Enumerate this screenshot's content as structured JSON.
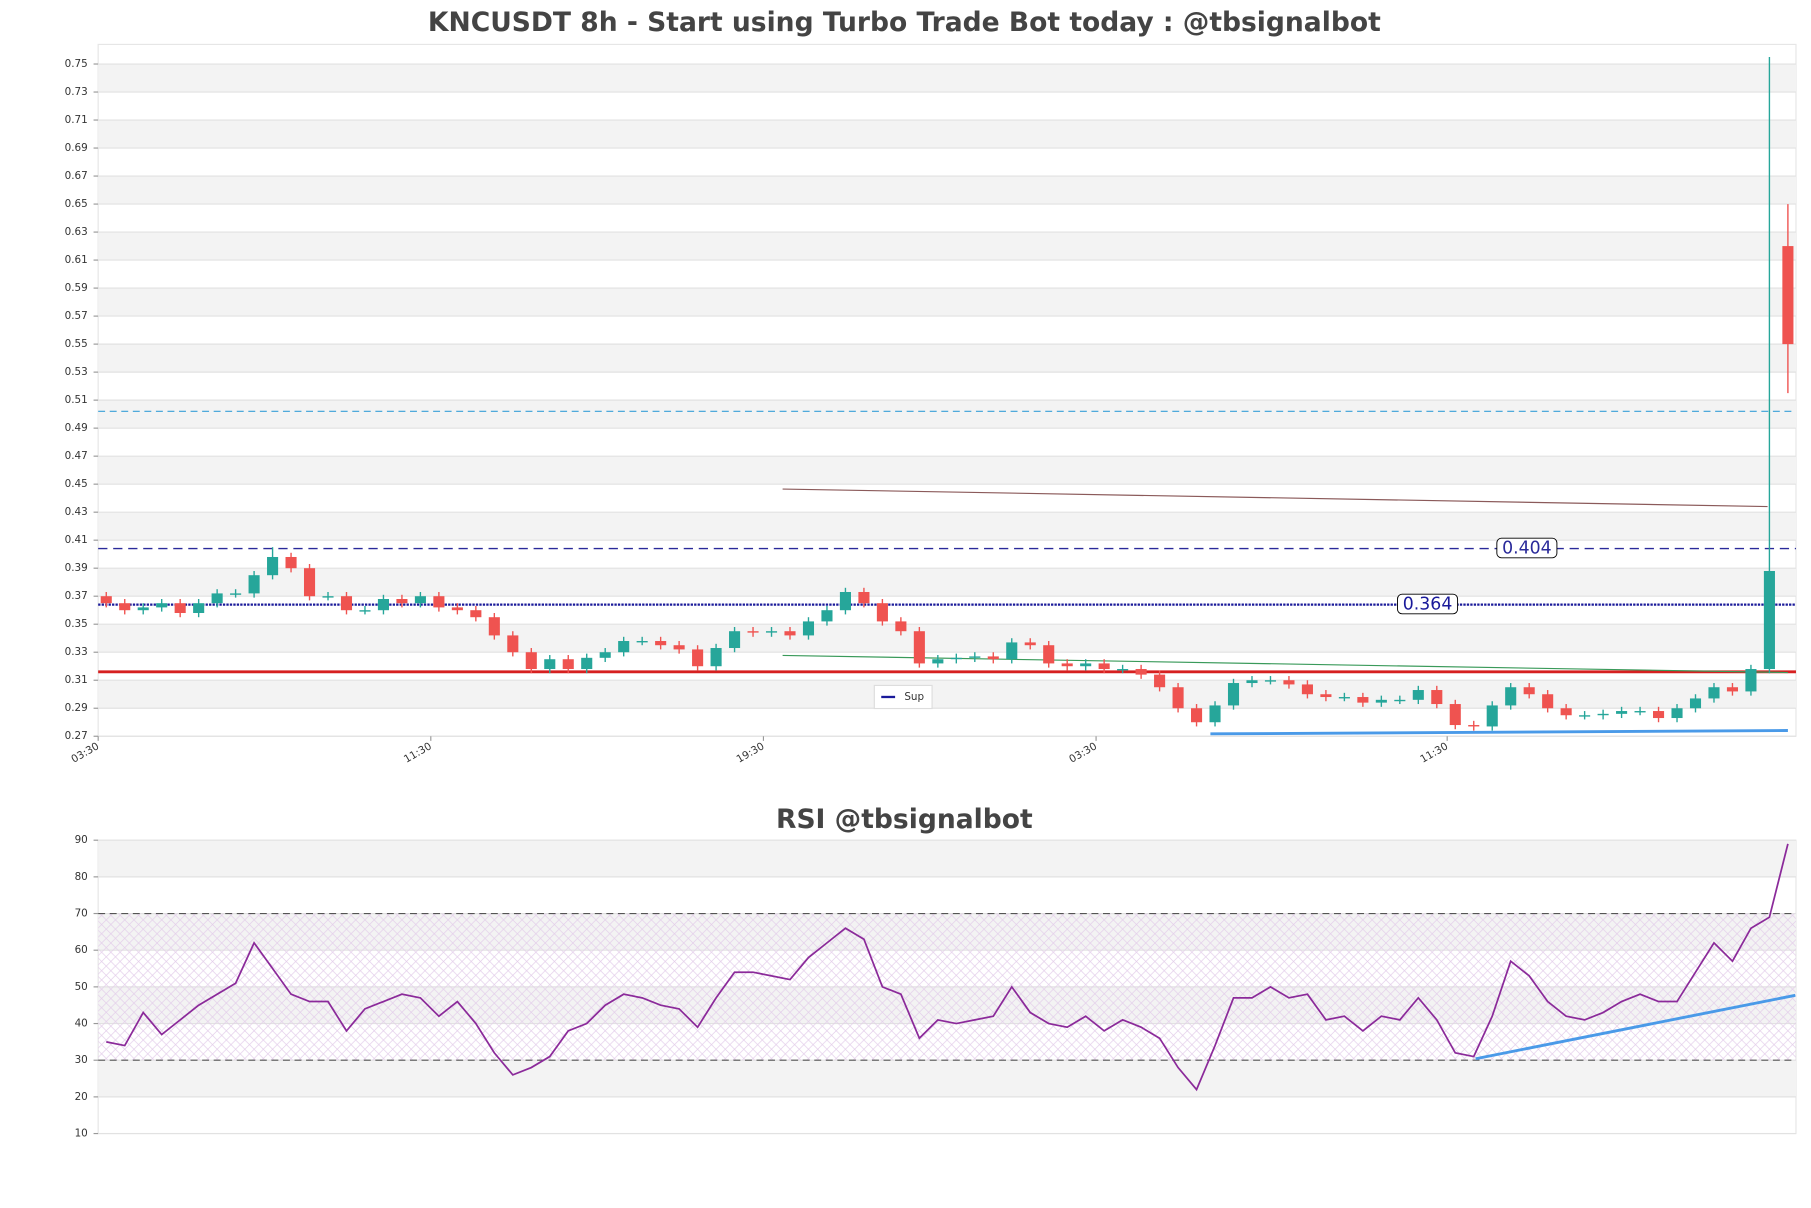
{
  "chart_data": [
    {
      "type": "candlestick",
      "title": "KNCUSDT 8h - Start using Turbo Trade Bot today : @tbsignalbot",
      "categories": [
        "03:30",
        null,
        null,
        null,
        null,
        null,
        null,
        null,
        null,
        null,
        null,
        null,
        null,
        null,
        null,
        null,
        null,
        null,
        "11:30",
        null,
        null,
        null,
        null,
        null,
        null,
        null,
        null,
        null,
        null,
        null,
        null,
        null,
        null,
        null,
        null,
        null,
        "19:30",
        null,
        null,
        null,
        null,
        null,
        null,
        null,
        null,
        null,
        null,
        null,
        null,
        null,
        null,
        null,
        null,
        null,
        "03:30",
        null,
        null,
        null,
        null,
        null,
        null,
        null,
        null,
        null,
        null,
        null,
        null,
        null,
        null,
        null,
        null,
        null,
        null,
        "11:30",
        null,
        null,
        null,
        null,
        null,
        null,
        null,
        null,
        null,
        null,
        null,
        null,
        null,
        null,
        null,
        null,
        null,
        null
      ],
      "open": [
        0.37,
        0.365,
        0.36,
        0.362,
        0.365,
        0.358,
        0.365,
        0.372,
        0.372,
        0.385,
        0.398,
        0.39,
        0.37,
        0.37,
        0.36,
        0.36,
        0.368,
        0.365,
        0.37,
        0.362,
        0.36,
        0.355,
        0.342,
        0.33,
        0.318,
        0.325,
        0.318,
        0.326,
        0.33,
        0.338,
        0.338,
        0.335,
        0.332,
        0.32,
        0.333,
        0.345,
        0.344,
        0.345,
        0.342,
        0.352,
        0.36,
        0.373,
        0.365,
        0.352,
        0.345,
        0.322,
        0.325,
        0.326,
        0.327,
        0.325,
        0.337,
        0.335,
        0.322,
        0.32,
        0.322,
        0.318,
        0.318,
        0.314,
        0.305,
        0.29,
        0.28,
        0.292,
        0.308,
        0.31,
        0.31,
        0.307,
        0.3,
        0.298,
        0.298,
        0.294,
        0.296,
        0.296,
        0.303,
        0.293,
        0.278,
        0.277,
        0.292,
        0.305,
        0.3,
        0.29,
        0.285,
        0.285,
        0.286,
        0.288,
        0.288,
        0.283,
        0.29,
        0.297,
        0.305,
        0.302,
        0.318,
        0.62
      ],
      "high": [
        0.373,
        0.368,
        0.365,
        0.368,
        0.368,
        0.368,
        0.375,
        0.375,
        0.388,
        0.405,
        0.401,
        0.393,
        0.373,
        0.373,
        0.363,
        0.371,
        0.371,
        0.373,
        0.373,
        0.365,
        0.363,
        0.358,
        0.345,
        0.333,
        0.328,
        0.328,
        0.329,
        0.333,
        0.341,
        0.341,
        0.341,
        0.338,
        0.335,
        0.336,
        0.348,
        0.348,
        0.348,
        0.348,
        0.355,
        0.363,
        0.376,
        0.376,
        0.368,
        0.355,
        0.348,
        0.328,
        0.329,
        0.33,
        0.33,
        0.34,
        0.34,
        0.338,
        0.325,
        0.325,
        0.325,
        0.321,
        0.321,
        0.317,
        0.308,
        0.293,
        0.295,
        0.311,
        0.313,
        0.313,
        0.313,
        0.31,
        0.303,
        0.301,
        0.301,
        0.299,
        0.299,
        0.306,
        0.306,
        0.296,
        0.281,
        0.295,
        0.308,
        0.308,
        0.303,
        0.293,
        0.288,
        0.289,
        0.291,
        0.291,
        0.291,
        0.293,
        0.3,
        0.308,
        0.308,
        0.321,
        0.755,
        0.65
      ],
      "low": [
        0.362,
        0.357,
        0.357,
        0.359,
        0.355,
        0.355,
        0.362,
        0.369,
        0.369,
        0.382,
        0.387,
        0.367,
        0.367,
        0.357,
        0.357,
        0.357,
        0.362,
        0.362,
        0.359,
        0.357,
        0.352,
        0.339,
        0.327,
        0.315,
        0.315,
        0.315,
        0.315,
        0.323,
        0.327,
        0.335,
        0.332,
        0.329,
        0.317,
        0.317,
        0.33,
        0.341,
        0.341,
        0.339,
        0.339,
        0.349,
        0.357,
        0.362,
        0.349,
        0.342,
        0.319,
        0.319,
        0.322,
        0.323,
        0.322,
        0.322,
        0.332,
        0.319,
        0.317,
        0.317,
        0.315,
        0.315,
        0.311,
        0.302,
        0.287,
        0.277,
        0.277,
        0.289,
        0.305,
        0.307,
        0.304,
        0.297,
        0.295,
        0.295,
        0.291,
        0.291,
        0.293,
        0.293,
        0.29,
        0.275,
        0.274,
        0.274,
        0.289,
        0.297,
        0.287,
        0.282,
        0.282,
        0.282,
        0.283,
        0.285,
        0.28,
        0.28,
        0.287,
        0.294,
        0.299,
        0.299,
        0.315,
        0.515
      ],
      "close": [
        0.365,
        0.36,
        0.362,
        0.365,
        0.358,
        0.365,
        0.372,
        0.372,
        0.385,
        0.398,
        0.39,
        0.37,
        0.37,
        0.36,
        0.36,
        0.368,
        0.365,
        0.37,
        0.362,
        0.36,
        0.355,
        0.342,
        0.33,
        0.318,
        0.325,
        0.318,
        0.326,
        0.33,
        0.338,
        0.338,
        0.335,
        0.332,
        0.32,
        0.333,
        0.345,
        0.344,
        0.345,
        0.342,
        0.352,
        0.36,
        0.373,
        0.365,
        0.352,
        0.345,
        0.322,
        0.325,
        0.326,
        0.327,
        0.325,
        0.337,
        0.335,
        0.322,
        0.32,
        0.322,
        0.318,
        0.318,
        0.314,
        0.305,
        0.29,
        0.28,
        0.292,
        0.308,
        0.31,
        0.31,
        0.307,
        0.3,
        0.298,
        0.298,
        0.294,
        0.296,
        0.296,
        0.303,
        0.293,
        0.278,
        0.277,
        0.292,
        0.305,
        0.3,
        0.29,
        0.285,
        0.285,
        0.286,
        0.288,
        0.288,
        0.283,
        0.29,
        0.297,
        0.305,
        0.302,
        0.318,
        0.388,
        0.55
      ],
      "up_color": "#26a69a",
      "down_color": "#ef5350",
      "ylim": [
        0.27,
        0.764
      ],
      "yticks": [
        0.27,
        0.29,
        0.31,
        0.33,
        0.35,
        0.37,
        0.39,
        0.41,
        0.43,
        0.45,
        0.47,
        0.49,
        0.51,
        0.53,
        0.55,
        0.57,
        0.59,
        0.61,
        0.63,
        0.65,
        0.67,
        0.69,
        0.71,
        0.73,
        0.75
      ],
      "grid": true,
      "hlines": [
        {
          "value": 0.502,
          "color": "#3aa0d8",
          "dash": "6 4",
          "width": 1
        },
        {
          "value": 0.404,
          "label": "0.404",
          "color": "#2a2a9a",
          "dash": "8 5",
          "width": 1.2
        },
        {
          "value": 0.364,
          "label": "0.364",
          "color": "#1a1a9a",
          "dash": "2 1",
          "width": 2
        },
        {
          "value": 0.316,
          "color": "#d62020",
          "width": 2.5
        }
      ],
      "lines": [
        {
          "x": [
            36.6,
            89.9
          ],
          "y": [
            0.4465,
            0.434
          ],
          "color": "#8b5a5a",
          "width": 1
        },
        {
          "x": [
            36.6,
            91
          ],
          "y": [
            0.3277,
            0.3155
          ],
          "color": "#3a9a5a",
          "width": 1
        },
        {
          "x": [
            59.75,
            91
          ],
          "y": [
            0.2717,
            0.2741
          ],
          "color": "#4a9ae8",
          "width": 2.5
        }
      ],
      "legend": {
        "label": "Sup",
        "color": "#1a1a9a"
      }
    },
    {
      "type": "line",
      "title": "RSI @tbsignalbot",
      "values": [
        35,
        34,
        43,
        37,
        41,
        45,
        48,
        51,
        62,
        55,
        48,
        46,
        46,
        38,
        44,
        46,
        48,
        47,
        42,
        46,
        40,
        32,
        26,
        28,
        31,
        38,
        40,
        45,
        48,
        47,
        45,
        44,
        39,
        47,
        54,
        54,
        53,
        52,
        58,
        62,
        66,
        63,
        50,
        48,
        36,
        41,
        40,
        41,
        42,
        50,
        43,
        40,
        39,
        42,
        38,
        41,
        39,
        36,
        28,
        22,
        34,
        47,
        47,
        50,
        47,
        48,
        41,
        42,
        38,
        42,
        41,
        47,
        41,
        32,
        31,
        42,
        57,
        53,
        46,
        42,
        41,
        43,
        46,
        48,
        46,
        46,
        54,
        62,
        57,
        66,
        69,
        89
      ],
      "color": "#8b2a9a",
      "ylim": [
        10,
        90
      ],
      "yticks": [
        10,
        20,
        30,
        40,
        50,
        60,
        70,
        80,
        90
      ],
      "grid": true,
      "hlines": [
        {
          "value": 30,
          "color": "#555",
          "dash": "6 4",
          "width": 1
        },
        {
          "value": 70,
          "color": "#555",
          "dash": "6 4",
          "width": 1
        }
      ],
      "lines": [
        {
          "x": [
            74.1,
            91.4
          ],
          "y": [
            30.4,
            47.7
          ],
          "color": "#4a9ae8",
          "width": 2.5
        }
      ]
    }
  ]
}
